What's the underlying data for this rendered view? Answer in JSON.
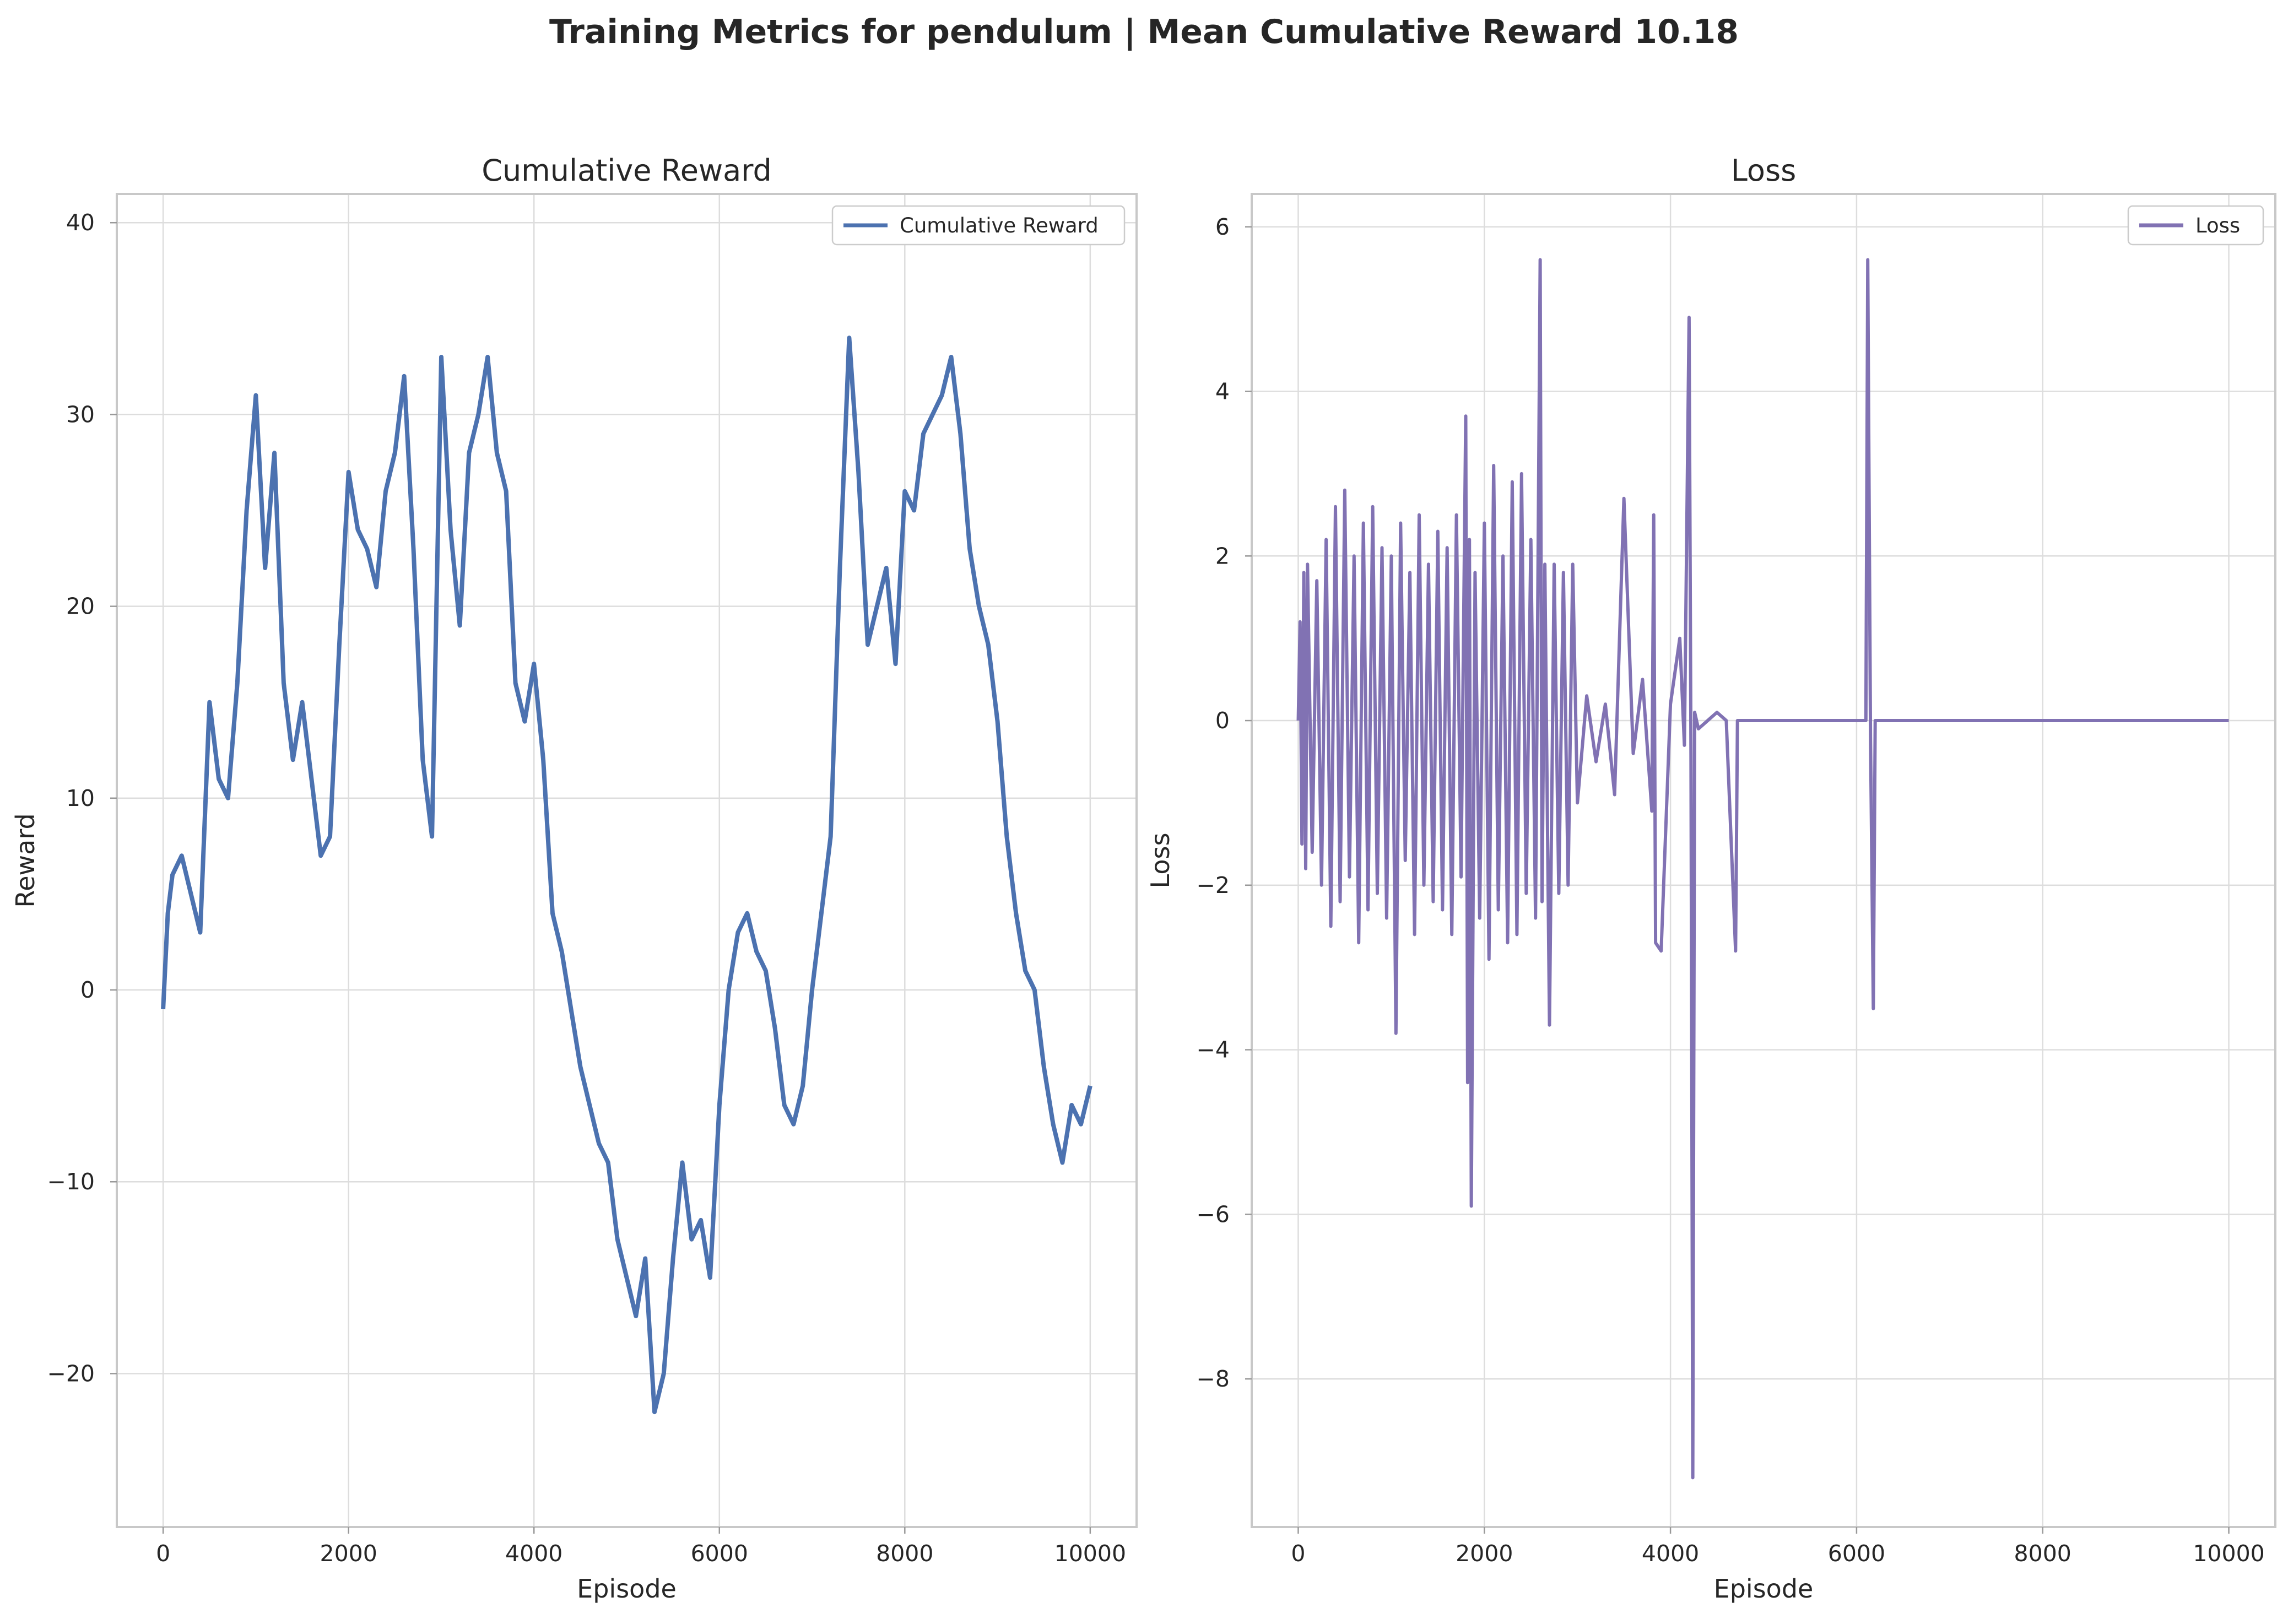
{
  "figure": {
    "title": "Training Metrics for pendulum | Mean Cumulative Reward 10.18"
  },
  "chart_data": [
    {
      "type": "line",
      "title": "Cumulative Reward",
      "xlabel": "Episode",
      "ylabel": "Reward",
      "xlim": [
        -500,
        10500
      ],
      "ylim": [
        -28,
        41.5
      ],
      "xticks": [
        0,
        2000,
        4000,
        6000,
        8000,
        10000
      ],
      "xtick_labels": [
        "0",
        "2000",
        "4000",
        "6000",
        "8000",
        "10000"
      ],
      "yticks": [
        -20,
        -10,
        0,
        10,
        20,
        30,
        40
      ],
      "ytick_labels": [
        "−20",
        "−10",
        "0",
        "10",
        "20",
        "30",
        "40"
      ],
      "grid": true,
      "legend": {
        "position": "top-right",
        "entries": [
          "Cumulative Reward"
        ]
      },
      "series": [
        {
          "name": "Cumulative Reward",
          "color": "#4c72b0",
          "x": [
            0,
            50,
            100,
            200,
            300,
            400,
            500,
            600,
            700,
            800,
            900,
            1000,
            1100,
            1200,
            1300,
            1400,
            1500,
            1600,
            1700,
            1800,
            1900,
            2000,
            2100,
            2200,
            2300,
            2400,
            2500,
            2600,
            2700,
            2800,
            2900,
            3000,
            3100,
            3200,
            3300,
            3400,
            3500,
            3600,
            3700,
            3800,
            3900,
            4000,
            4100,
            4200,
            4300,
            4400,
            4500,
            4600,
            4700,
            4800,
            4900,
            5000,
            5100,
            5200,
            5300,
            5400,
            5500,
            5600,
            5700,
            5800,
            5900,
            6000,
            6100,
            6200,
            6300,
            6400,
            6500,
            6600,
            6700,
            6800,
            6900,
            7000,
            7100,
            7200,
            7300,
            7400,
            7500,
            7600,
            7700,
            7800,
            7900,
            8000,
            8100,
            8200,
            8300,
            8400,
            8500,
            8600,
            8700,
            8800,
            8900,
            9000,
            9100,
            9200,
            9300,
            9400,
            9500,
            9600,
            9700,
            9800,
            9900,
            10000
          ],
          "y": [
            -1,
            4,
            6,
            7,
            5,
            3,
            15,
            11,
            10,
            16,
            25,
            31,
            22,
            28,
            16,
            12,
            15,
            11,
            7,
            8,
            18,
            27,
            24,
            23,
            21,
            26,
            28,
            32,
            23,
            12,
            8,
            33,
            24,
            19,
            28,
            30,
            33,
            28,
            26,
            16,
            14,
            17,
            12,
            4,
            2,
            -1,
            -4,
            -6,
            -8,
            -9,
            -13,
            -15,
            -17,
            -14,
            -22,
            -20,
            -14,
            -9,
            -13,
            -12,
            -15,
            -6,
            0,
            3,
            4,
            2,
            1,
            -2,
            -6,
            -7,
            -5,
            0,
            4,
            8,
            22,
            34,
            27,
            18,
            20,
            22,
            17,
            26,
            25,
            29,
            30,
            31,
            33,
            29,
            23,
            20,
            18,
            14,
            8,
            4,
            1,
            0,
            -4,
            -7,
            -9,
            -6,
            -7,
            -5
          ]
        }
      ]
    },
    {
      "type": "line",
      "title": "Loss",
      "xlabel": "Episode",
      "ylabel": "Loss",
      "xlim": [
        -500,
        10500
      ],
      "ylim": [
        -9.8,
        6.4
      ],
      "xticks": [
        0,
        2000,
        4000,
        6000,
        8000,
        10000
      ],
      "xtick_labels": [
        "0",
        "2000",
        "4000",
        "6000",
        "8000",
        "10000"
      ],
      "yticks": [
        -8,
        -6,
        -4,
        -2,
        0,
        2,
        4,
        6
      ],
      "ytick_labels": [
        "−8",
        "−6",
        "−4",
        "−2",
        "0",
        "2",
        "4",
        "6"
      ],
      "grid": true,
      "legend": {
        "position": "top-right",
        "entries": [
          "Loss"
        ]
      },
      "series": [
        {
          "name": "Loss",
          "color": "#8172b3",
          "x": [
            0,
            20,
            40,
            60,
            80,
            100,
            150,
            200,
            250,
            300,
            350,
            400,
            450,
            500,
            550,
            600,
            650,
            700,
            750,
            800,
            850,
            900,
            950,
            1000,
            1050,
            1100,
            1150,
            1200,
            1250,
            1300,
            1350,
            1400,
            1450,
            1500,
            1550,
            1600,
            1650,
            1700,
            1750,
            1800,
            1820,
            1840,
            1860,
            1900,
            1950,
            2000,
            2050,
            2100,
            2150,
            2200,
            2250,
            2300,
            2350,
            2400,
            2450,
            2500,
            2550,
            2600,
            2620,
            2650,
            2700,
            2750,
            2800,
            2850,
            2900,
            2950,
            3000,
            3100,
            3200,
            3300,
            3400,
            3500,
            3600,
            3700,
            3800,
            3820,
            3840,
            3900,
            4000,
            4100,
            4150,
            4200,
            4220,
            4240,
            4260,
            4300,
            4400,
            4500,
            4600,
            4700,
            4720,
            4740,
            4800,
            5000,
            5500,
            6000,
            6100,
            6120,
            6150,
            6180,
            6200,
            6300,
            6500,
            7000,
            8000,
            9000,
            10000
          ],
          "y": [
            0,
            1.2,
            -1.5,
            1.8,
            -1.8,
            1.9,
            -1.6,
            1.7,
            -2.0,
            2.2,
            -2.5,
            2.6,
            -2.2,
            2.8,
            -1.9,
            2.0,
            -2.7,
            2.4,
            -2.3,
            2.6,
            -2.1,
            2.1,
            -2.4,
            2.0,
            -3.8,
            2.4,
            -1.7,
            1.8,
            -2.6,
            2.5,
            -2.0,
            1.9,
            -2.2,
            2.3,
            -2.3,
            2.1,
            -2.6,
            2.5,
            -1.9,
            3.7,
            -4.4,
            2.2,
            -5.9,
            1.8,
            -2.4,
            2.4,
            -2.9,
            3.1,
            -2.3,
            2.0,
            -2.7,
            2.9,
            -2.6,
            3.0,
            -2.1,
            2.2,
            -2.4,
            5.6,
            -2.2,
            1.9,
            -3.7,
            1.9,
            -2.1,
            1.8,
            -2.0,
            1.9,
            -1.0,
            0.3,
            -0.5,
            0.2,
            -0.9,
            2.7,
            -0.4,
            0.5,
            -1.1,
            2.5,
            -2.7,
            -2.8,
            0.2,
            1.0,
            -0.3,
            4.9,
            -0.4,
            -9.2,
            0.1,
            -0.1,
            0.0,
            0.1,
            0.0,
            -2.8,
            0.0,
            0.0,
            0.0,
            0.0,
            0.0,
            0.0,
            0.0,
            5.6,
            -0.2,
            -3.5,
            0.0,
            0.0,
            0.0,
            0.0,
            0.0,
            0.0,
            0.0
          ]
        }
      ]
    }
  ]
}
